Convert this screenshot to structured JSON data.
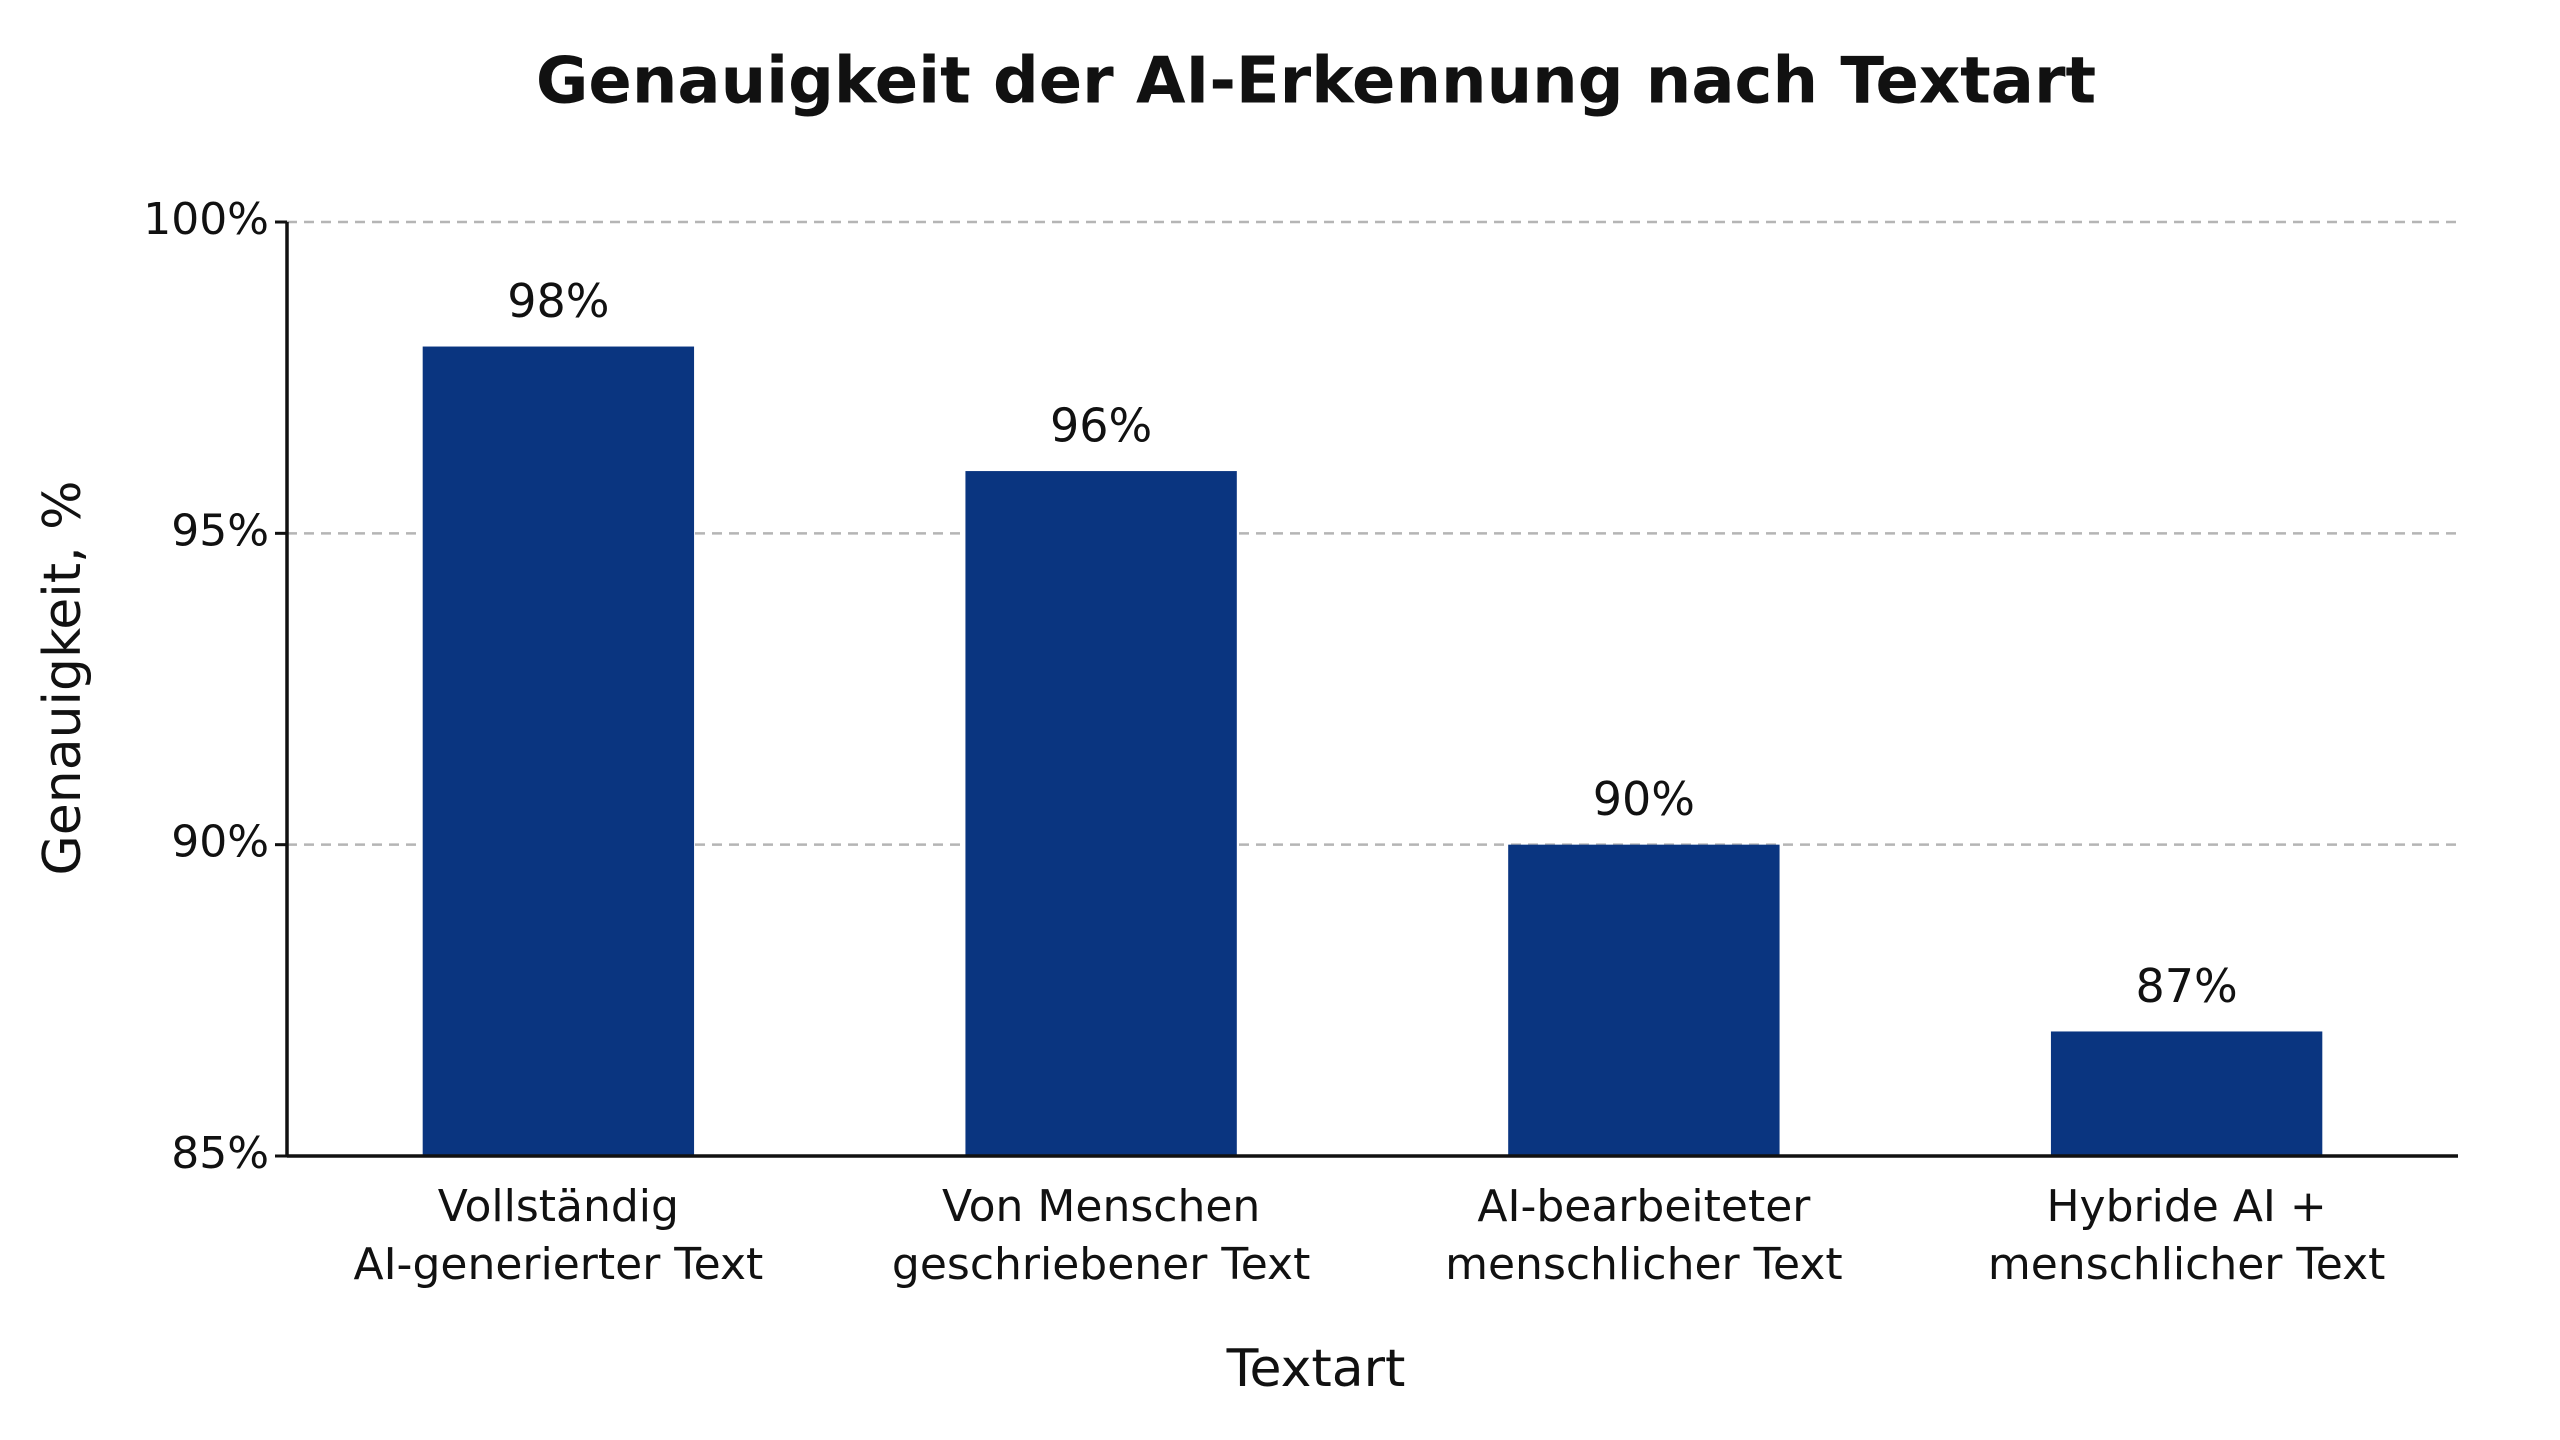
{
  "chart_data": {
    "type": "bar",
    "title": "Genauigkeit der AI-Erkennung nach Textart",
    "x_label": "Textart",
    "y_label": "Genauigkeit, %",
    "categories": [
      "Vollständig\nAI-generierter Text",
      "Von Menschen\ngeschriebener Text",
      "AI-bearbeiteter\nmenschlicher Text",
      "Hybride AI +\nmenschlicher Text"
    ],
    "values": [
      98,
      96,
      90,
      87
    ],
    "value_labels": [
      "98%",
      "96%",
      "90%",
      "87%"
    ],
    "color": "#0a3580",
    "ylim": [
      85,
      100
    ],
    "yticks": [
      {
        "value": 85,
        "label": "85%"
      },
      {
        "value": 90,
        "label": "90%"
      },
      {
        "value": 95,
        "label": "95%"
      },
      {
        "value": 100,
        "label": "100%"
      }
    ],
    "grid": true
  }
}
